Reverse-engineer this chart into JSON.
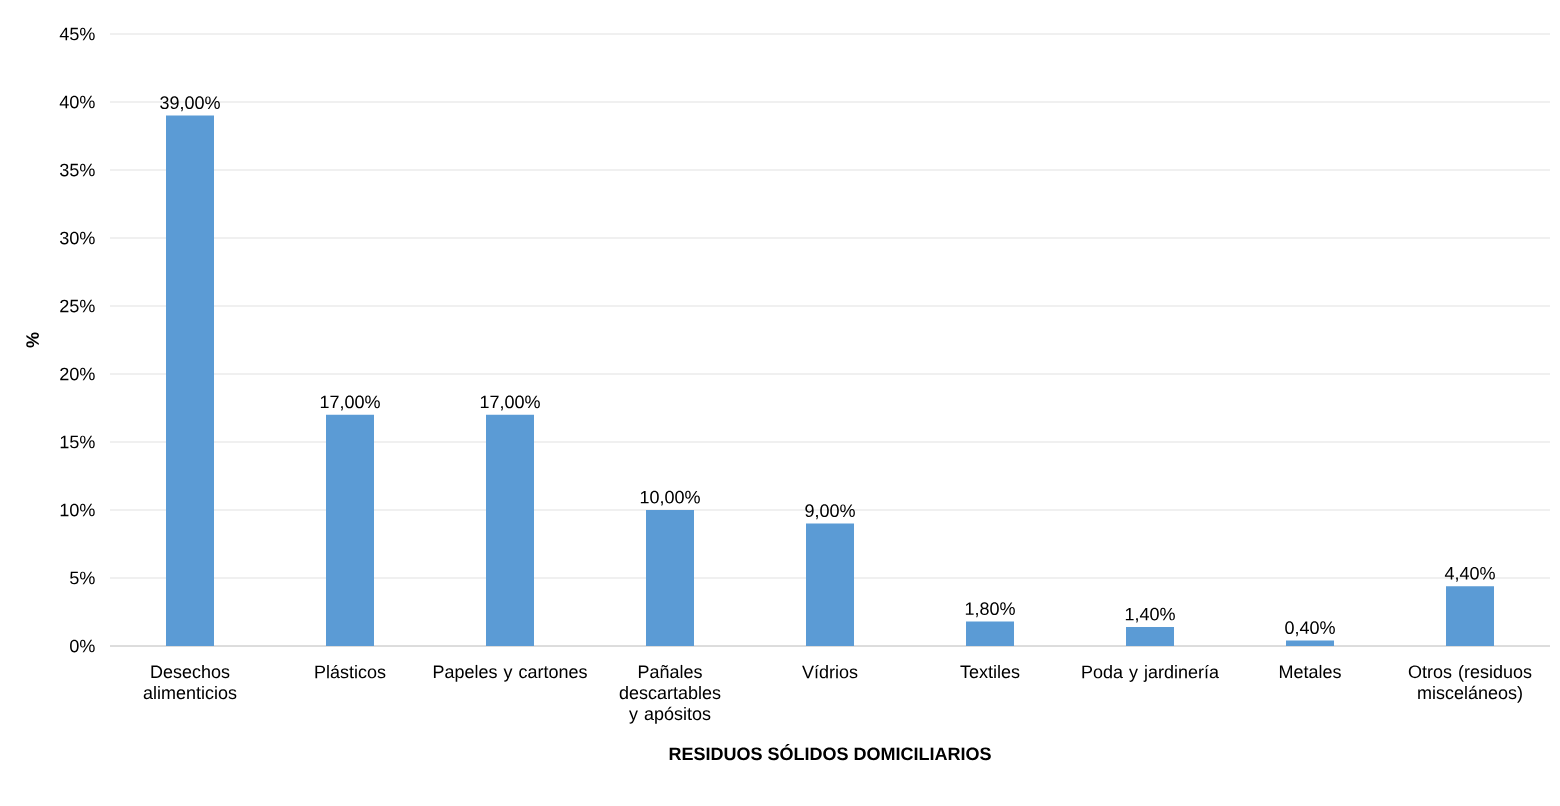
{
  "chart_data": {
    "type": "bar",
    "xlabel": "RESIDUOS SÓLIDOS DOMICILIARIOS",
    "ylabel": "%",
    "categories": [
      "Desechos alimenticios",
      "Plásticos",
      "Papeles y cartones",
      "Pañales descartables y apósitos",
      "Vídrios",
      "Textiles",
      "Poda y jardinería",
      "Metales",
      "Otros (residuos misceláneos)"
    ],
    "values": [
      39,
      17,
      17,
      10,
      9,
      1.8,
      1.4,
      0.4,
      4.4
    ],
    "value_labels": [
      "39,00%",
      "17,00%",
      "17,00%",
      "10,00%",
      "9,00%",
      "1,80%",
      "1,40%",
      "0,40%",
      "4,40%"
    ],
    "color": "#5b9bd5",
    "ylim": [
      0,
      45
    ],
    "yticks": [
      {
        "value": 0,
        "label": "0%"
      },
      {
        "value": 5,
        "label": "5%"
      },
      {
        "value": 10,
        "label": "10%"
      },
      {
        "value": 15,
        "label": "15%"
      },
      {
        "value": 20,
        "label": "20%"
      },
      {
        "value": 25,
        "label": "25%"
      },
      {
        "value": 30,
        "label": "30%"
      },
      {
        "value": 35,
        "label": "35%"
      },
      {
        "value": 40,
        "label": "40%"
      },
      {
        "value": 45,
        "label": "45%"
      }
    ],
    "grid": "y"
  }
}
